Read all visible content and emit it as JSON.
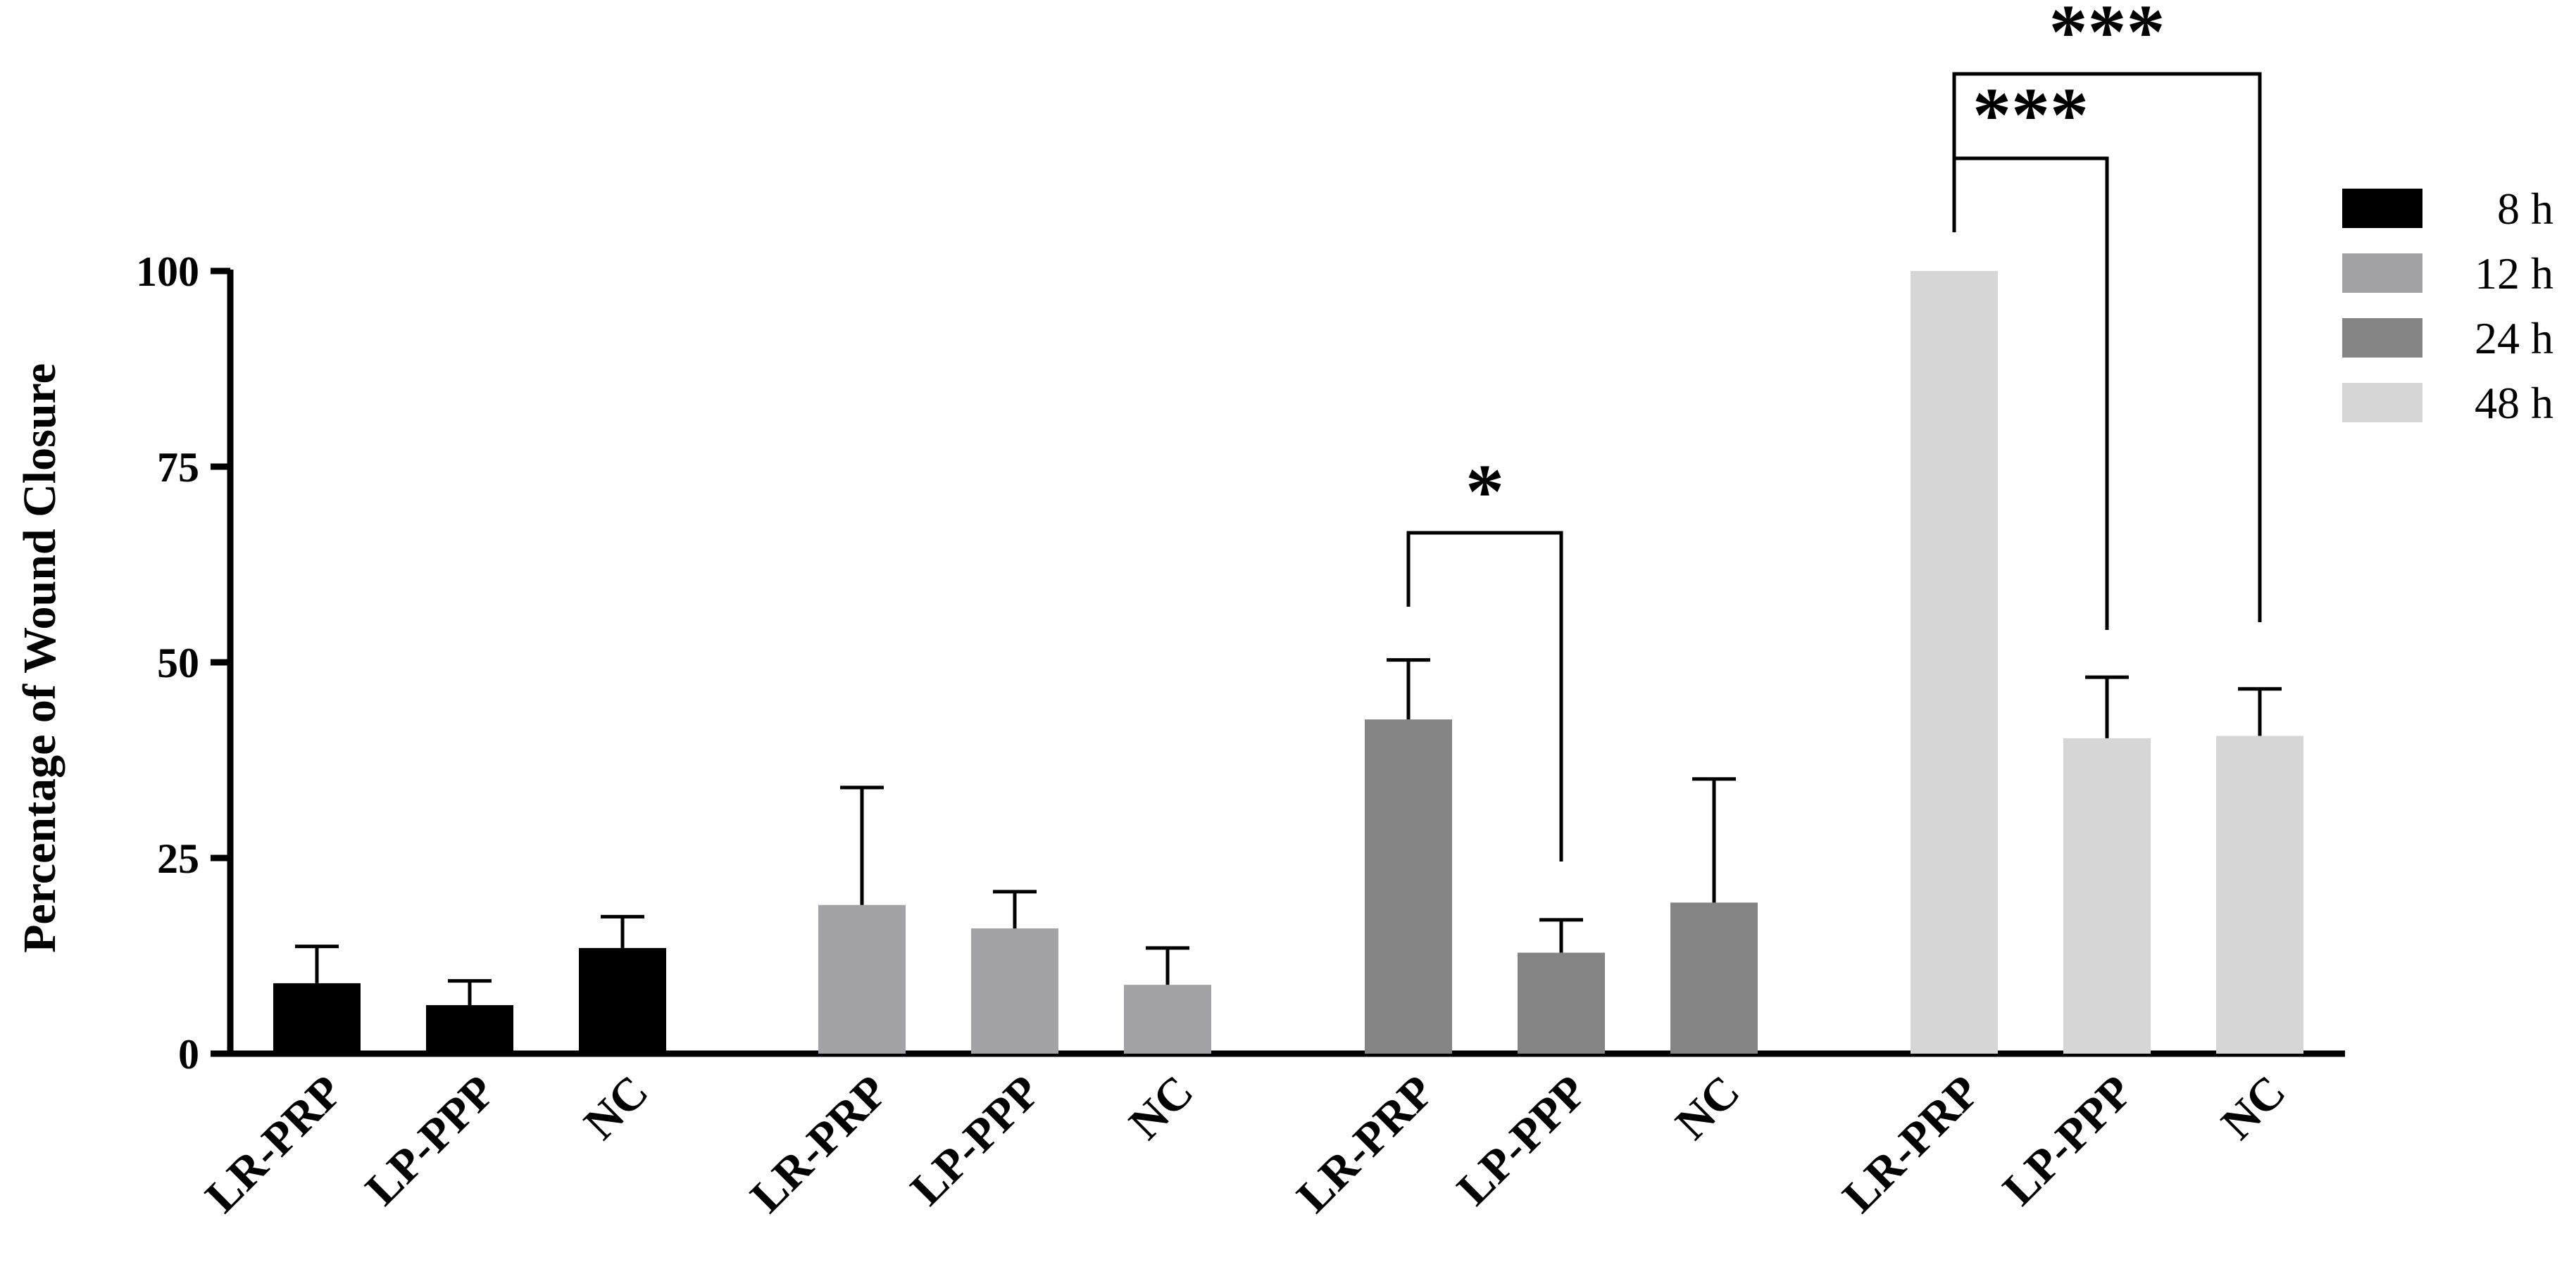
{
  "chart_data": {
    "type": "bar",
    "title": "",
    "xlabel": "",
    "ylabel": "Percentage of Wound Closure",
    "ylim": [
      0,
      100
    ],
    "yticks": [
      "0",
      "25",
      "50",
      "75",
      "100"
    ],
    "ytick_values": [
      0,
      25,
      50,
      75,
      100
    ],
    "categories": [
      "LR-PRP",
      "LP-PPP",
      "NC"
    ],
    "legend_position": "right",
    "grid": false,
    "series": [
      {
        "name": "8 h",
        "color": "#000000",
        "values": [
          9.0,
          6.2,
          13.5
        ],
        "errors": [
          4.7,
          3.1,
          4.0
        ]
      },
      {
        "name": "12 h",
        "color": "#a3a2a7",
        "values": [
          19.0,
          16.0,
          8.8
        ],
        "errors": [
          15.0,
          4.7,
          4.7
        ]
      },
      {
        "name": "24 h",
        "color": "#848484",
        "values": [
          42.7,
          12.9,
          19.3
        ],
        "errors": [
          7.6,
          4.2,
          15.8
        ]
      },
      {
        "name": "48 h",
        "color": "#d6d6d6",
        "values": [
          100.0,
          40.3,
          40.6
        ],
        "errors": [
          0.0,
          7.8,
          6.0
        ]
      }
    ],
    "significance": [
      {
        "series": "24 h",
        "from": "LR-PRP",
        "to": "LP-PPP",
        "label": "*"
      },
      {
        "series": "48 h",
        "from": "LR-PRP",
        "to": "LP-PPP",
        "label": "***"
      },
      {
        "series": "48 h",
        "from": "LR-PRP",
        "to": "NC",
        "label": "***"
      }
    ]
  }
}
